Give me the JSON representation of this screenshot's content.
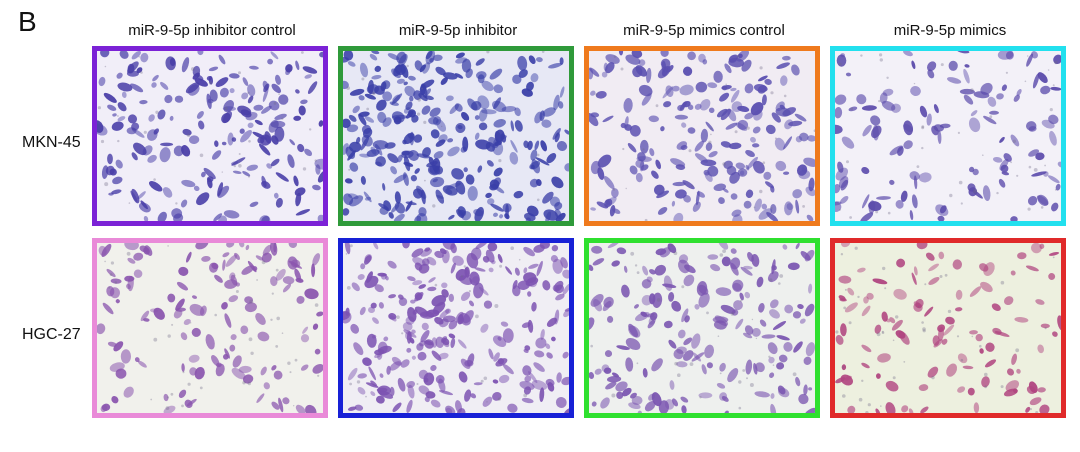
{
  "panel_letter": "B",
  "columns": [
    "miR-9-5p inhibitor control",
    "miR-9-5p inhibitor",
    "miR-9-5p mimics control",
    "miR-9-5p mimics"
  ],
  "rows": [
    "MKN-45",
    "HGC-27"
  ],
  "tiles": [
    {
      "row": 0,
      "col": 0,
      "frame": "#7b22d6",
      "bg": "#f1eef8",
      "cell": "#4a3fa8",
      "density": 0.55
    },
    {
      "row": 0,
      "col": 1,
      "frame": "#2f9a3a",
      "bg": "#e7e8f5",
      "cell": "#3a3fa8",
      "density": 0.9
    },
    {
      "row": 0,
      "col": 2,
      "frame": "#ef7a1d",
      "bg": "#f1ecf3",
      "cell": "#5a4fb0",
      "density": 0.6
    },
    {
      "row": 0,
      "col": 3,
      "frame": "#22e0ee",
      "bg": "#f3f1f8",
      "cell": "#5b4bab",
      "density": 0.3
    },
    {
      "row": 1,
      "col": 0,
      "frame": "#e98ad8",
      "bg": "#f1f1ec",
      "cell": "#8a55ae",
      "density": 0.35
    },
    {
      "row": 1,
      "col": 1,
      "frame": "#1821d6",
      "bg": "#f0eef4",
      "cell": "#7c52b1",
      "density": 0.8
    },
    {
      "row": 1,
      "col": 2,
      "frame": "#2fe02f",
      "bg": "#eef0ee",
      "cell": "#7a55b0",
      "density": 0.5
    },
    {
      "row": 1,
      "col": 3,
      "frame": "#e02a2a",
      "bg": "#edf0df",
      "cell": "#b0447f",
      "density": 0.25
    }
  ]
}
